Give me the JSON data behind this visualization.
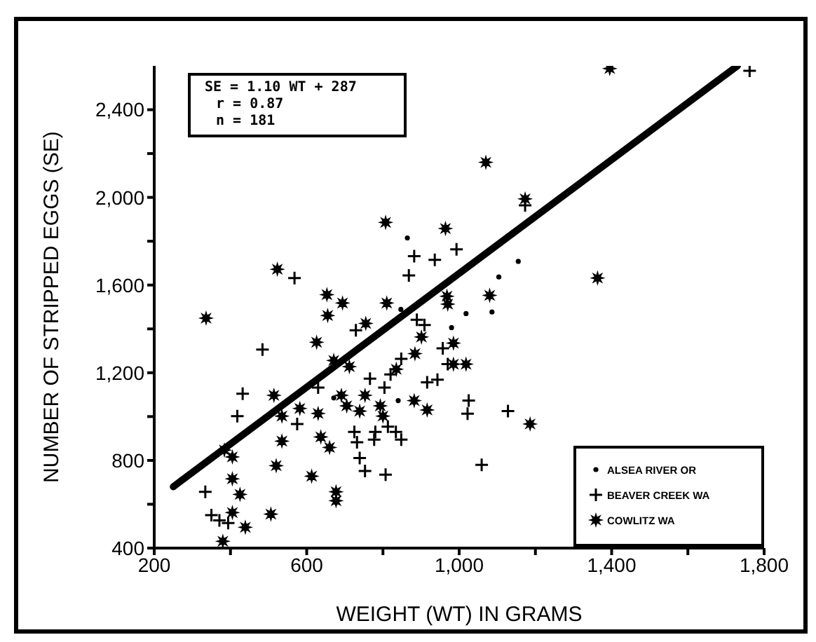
{
  "chart_data": {
    "type": "scatter",
    "xlabel": "WEIGHT (WT) IN GRAMS",
    "ylabel": "NUMBER OF STRIPPED EGGS (SE)",
    "annotations": [
      "SE = 1.10 WT + 287",
      "r = 0.87",
      "n = 181"
    ],
    "xlim": [
      200,
      1800
    ],
    "xticks": [
      200,
      {
        "value": 400,
        "label": null
      },
      600,
      {
        "value": 800,
        "label": null
      },
      {
        "value": 1000,
        "label": "1,000"
      },
      {
        "value": 1200,
        "label": null
      },
      {
        "value": 1400,
        "label": "1,400"
      },
      {
        "value": 1600,
        "label": null
      },
      {
        "value": 1800,
        "label": "1,800"
      }
    ],
    "ylim": [
      400,
      2600
    ],
    "yticks": [
      400,
      {
        "value": 600,
        "label": null
      },
      800,
      {
        "value": 1000,
        "label": null
      },
      {
        "value": 1200,
        "label": "1,200"
      },
      {
        "value": 1400,
        "label": null
      },
      {
        "value": 1600,
        "label": "1,600"
      },
      {
        "value": 1800,
        "label": null
      },
      {
        "value": 2000,
        "label": "2,000"
      },
      {
        "value": 2200,
        "label": null
      },
      {
        "value": 2400,
        "label": "2,400"
      }
    ],
    "legend": "bottom right",
    "series": [
      {
        "name": "ALSEA RIVER OR",
        "color": "#000000",
        "marker": "circle",
        "x": [
          864,
          1155,
          1104,
          1018,
          1086,
          980,
          847,
          840,
          671
        ],
        "values": [
          1815,
          1708,
          1637,
          1470,
          1477,
          1406,
          1489,
          1073,
          1085
        ]
      },
      {
        "name": "BEAVER CREEK WA",
        "color": "#000000",
        "marker": "cross",
        "x": [
          334,
          350,
          371,
          394,
          418,
          432,
          484,
          568,
          729,
          766,
          868,
          882,
          936,
          993,
          889,
          909,
          957,
          970,
          943,
          916,
          848,
          820,
          804,
          725,
          732,
          739,
          753,
          777,
          780,
          807,
          813,
          834,
          848,
          575,
          630,
          1173,
          1762,
          1022,
          1025,
          1128,
          1059
        ],
        "values": [
          657,
          550,
          526,
          514,
          1002,
          1104,
          1306,
          1632,
          1394,
          1173,
          1644,
          1732,
          1715,
          1763,
          1442,
          1418,
          1311,
          1239,
          1168,
          1156,
          1263,
          1192,
          1132,
          930,
          883,
          811,
          752,
          895,
          930,
          735,
          954,
          930,
          895,
          966,
          1132,
          1964,
          2578,
          1013,
          1073,
          1025,
          780
        ]
      },
      {
        "name": "COWLITZ WA",
        "color": "#000000",
        "marker": "star",
        "x": [
          336,
          523,
          653,
          694,
          655,
          626,
          671,
          712,
          807,
          964,
          1070,
          1173,
          1395,
          1363,
          1080,
          968,
          970,
          810,
          755,
          901,
          985,
          985,
          884,
          835,
          514,
          535,
          535,
          582,
          630,
          637,
          660,
          691,
          705,
          739,
          753,
          793,
          800,
          882,
          916,
          1018,
          520,
          613,
          677,
          677,
          506,
          384,
          405,
          405,
          425,
          405,
          439,
          380,
          1186
        ],
        "values": [
          1449,
          1672,
          1556,
          1518,
          1461,
          1339,
          1256,
          1228,
          1886,
          1858,
          2160,
          1993,
          2588,
          1632,
          1553,
          1549,
          1513,
          1518,
          1425,
          1363,
          1335,
          1239,
          1287,
          1216,
          1097,
          1002,
          888,
          1037,
          1014,
          907,
          859,
          1097,
          1049,
          1025,
          1097,
          1049,
          1002,
          1073,
          1030,
          1239,
          776,
          728,
          657,
          616,
          555,
          847,
          816,
          716,
          645,
          562,
          495,
          431,
          966
        ]
      },
      {
        "type": "line",
        "color": "#000000",
        "x": [
          250,
          1730
        ],
        "values": [
          680,
          2600
        ]
      }
    ]
  }
}
